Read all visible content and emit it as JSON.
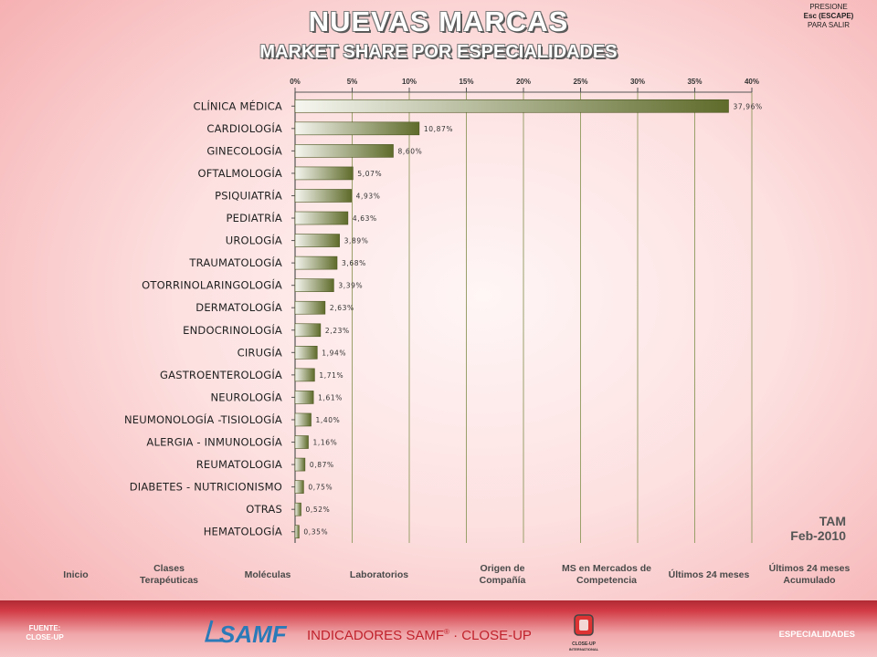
{
  "header": {
    "title": "NUEVAS MARCAS",
    "subtitle": "MARKET SHARE POR ESPECIALIDADES",
    "exit_line1": "PRESIONE",
    "exit_line2": "Esc (ESCAPE)",
    "exit_line3": "PARA SALIR"
  },
  "tam": {
    "line1": "TAM",
    "line2": "Feb-2010"
  },
  "nav": {
    "inicio": "Inicio",
    "clases": "Clases Terapéuticas",
    "moleculas": "Moléculas",
    "laboratorios": "Laboratorios",
    "origen": "Origen de Compañía",
    "ms_mercados": "MS en Mercados de Competencia",
    "ultimos24": "Últimos 24 meses",
    "ultimos24_acum": "Últimos 24 meses Acumulado"
  },
  "footer": {
    "source_line1": "FUENTE:",
    "source_line2": "CLOSE-UP",
    "brand_prefix": "INDICADORES SAMF",
    "brand_reg": "®",
    "brand_suffix": " · CLOSE-UP",
    "logo_samf": "SAMF",
    "logo_cu_line1": "CLOSE-UP",
    "logo_cu_line2": "INTERNATIONAL",
    "section": "ESPECIALIDADES"
  },
  "colors": {
    "bar_dark": "#5e6b2a",
    "bar_light": "#f6f6f0",
    "brand_red": "#c0222c"
  },
  "chart_data": {
    "type": "bar",
    "orientation": "horizontal",
    "categories": [
      "CLÍNICA MÉDICA",
      "CARDIOLOGÍA",
      "GINECOLOGÍA",
      "OFTALMOLOGÍA",
      "PSIQUIATRÍA",
      "PEDIATRÍA",
      "UROLOGÍA",
      "TRAUMATOLOGÍA",
      "OTORRINOLARINGOLOGÍA",
      "DERMATOLOGÍA",
      "ENDOCRINOLOGÍA",
      "CIRUGÍA",
      "GASTROENTEROLOGÍA",
      "NEUROLOGÍA",
      "NEUMONOLOGÍA -TISIOLOGÍA",
      "ALERGIA - INMUNOLOGÍA",
      "REUMATOLOGIA",
      "DIABETES - NUTRICIONISMO",
      "OTRAS",
      "HEMATOLOGÍA"
    ],
    "values": [
      37.96,
      10.87,
      8.6,
      5.07,
      4.93,
      4.63,
      3.89,
      3.68,
      3.39,
      2.63,
      2.23,
      1.94,
      1.71,
      1.61,
      1.4,
      1.16,
      0.87,
      0.75,
      0.52,
      0.35
    ],
    "value_labels": [
      "37,96%",
      "10,87%",
      "8,60%",
      "5,07%",
      "4,93%",
      "4,63%",
      "3,89%",
      "3,68%",
      "3,39%",
      "2,63%",
      "2,23%",
      "1,94%",
      "1,71%",
      "1,61%",
      "1,40%",
      "1,16%",
      "0,87%",
      "0,75%",
      "0,52%",
      "0,35%"
    ],
    "xlim": [
      0,
      40
    ],
    "xticks": [
      0,
      5,
      10,
      15,
      20,
      25,
      30,
      35,
      40
    ],
    "xtick_labels": [
      "0%",
      "5%",
      "10%",
      "15%",
      "20%",
      "25%",
      "30%",
      "35%",
      "40%"
    ],
    "grid": true,
    "axis_position": "top"
  }
}
